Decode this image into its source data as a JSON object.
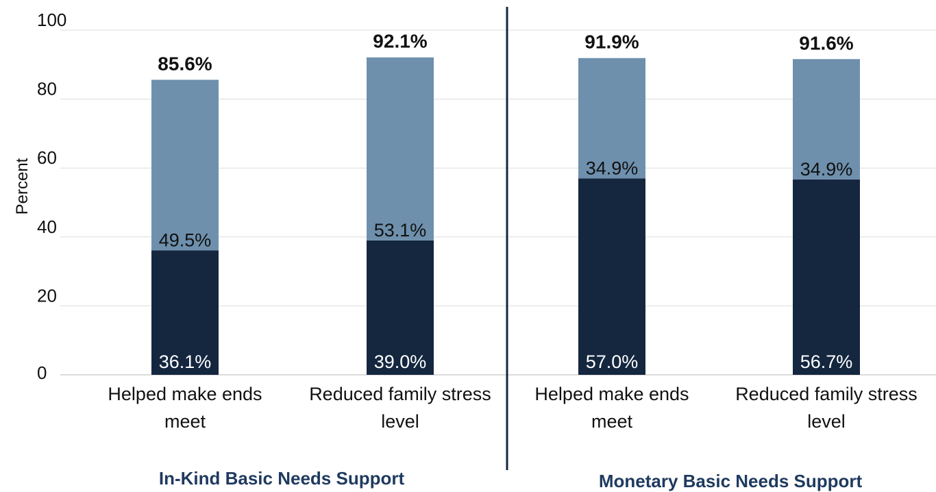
{
  "chart_data": {
    "type": "bar",
    "stacked": true,
    "ylabel": "Percent",
    "ylim": [
      0,
      100
    ],
    "yticks": [
      0,
      20,
      40,
      60,
      80,
      100
    ],
    "grid": true,
    "categories": [
      [
        "Helped make ends",
        "meet"
      ],
      [
        "Reduced family stress",
        "level"
      ],
      [
        "Helped make ends",
        "meet"
      ],
      [
        "Reduced family stress",
        "level"
      ]
    ],
    "groups": [
      {
        "label": "In-Kind Basic Needs Support",
        "categories": [
          0,
          1
        ]
      },
      {
        "label": "Monetary Basic Needs Support",
        "categories": [
          2,
          3
        ]
      }
    ],
    "series": [
      {
        "values": [
          36.1,
          39.0,
          57.0,
          56.7
        ],
        "labels": [
          "36.1%",
          "39.0%",
          "57.0%",
          "56.7%"
        ],
        "color": "#14273f"
      },
      {
        "values": [
          49.5,
          53.1,
          34.9,
          34.9
        ],
        "labels": [
          "49.5%",
          "53.1%",
          "34.9%",
          "34.9%"
        ],
        "color": "#6e90ad"
      }
    ],
    "totals": [
      "85.6%",
      "92.1%",
      "91.9%",
      "91.6%"
    ],
    "totals_values": [
      85.6,
      92.1,
      91.9,
      91.6
    ],
    "group_label_color": "#1f3a5f",
    "divider_color": "#14273f",
    "grid_color": "#dcdcdc"
  }
}
